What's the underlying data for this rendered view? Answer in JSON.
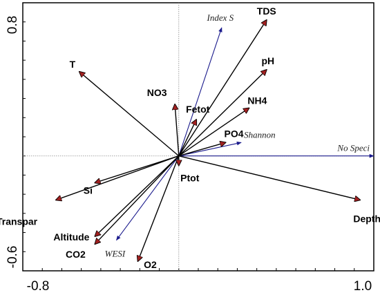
{
  "chart_data": {
    "type": "biplot",
    "title": "",
    "xlabel": "",
    "ylabel": "",
    "xlim": [
      -0.8,
      1.0
    ],
    "ylim": [
      -0.6,
      0.8
    ],
    "x_tick_labels": [
      "-0.8",
      "1.0"
    ],
    "y_tick_labels": [
      "0.8",
      "-0.6"
    ],
    "zero_lines": true,
    "colors": {
      "env_arrow": "#000000",
      "env_head": "#a02020",
      "species_arrow": "#1a1a8c"
    },
    "environmental_vectors": [
      {
        "name": "TDS",
        "x": 0.45,
        "y": 0.71
      },
      {
        "name": "pH",
        "x": 0.45,
        "y": 0.45
      },
      {
        "name": "NH4",
        "x": 0.36,
        "y": 0.25
      },
      {
        "name": "PO4",
        "x": 0.24,
        "y": 0.07
      },
      {
        "name": "Fetot",
        "x": 0.09,
        "y": 0.19
      },
      {
        "name": "NO3",
        "x": -0.02,
        "y": 0.27
      },
      {
        "name": "T",
        "x": -0.51,
        "y": 0.44
      },
      {
        "name": "Si",
        "x": -0.43,
        "y": -0.14
      },
      {
        "name": "Transpar",
        "x": -0.63,
        "y": -0.23
      },
      {
        "name": "Altitude",
        "x": -0.43,
        "y": -0.42
      },
      {
        "name": "CO2",
        "x": -0.43,
        "y": -0.46
      },
      {
        "name": "O2",
        "x": -0.21,
        "y": -0.55
      },
      {
        "name": "Ptot",
        "x": 0.0,
        "y": -0.05
      },
      {
        "name": "Depth",
        "x": 0.93,
        "y": -0.23
      }
    ],
    "species_vectors": [
      {
        "name": "Index S",
        "x": 0.22,
        "y": 0.67
      },
      {
        "name": "Shannon",
        "x": 0.32,
        "y": 0.07
      },
      {
        "name": "No Speci",
        "x": 1.0,
        "y": 0.0
      },
      {
        "name": "WESI",
        "x": -0.32,
        "y": -0.44
      }
    ]
  }
}
